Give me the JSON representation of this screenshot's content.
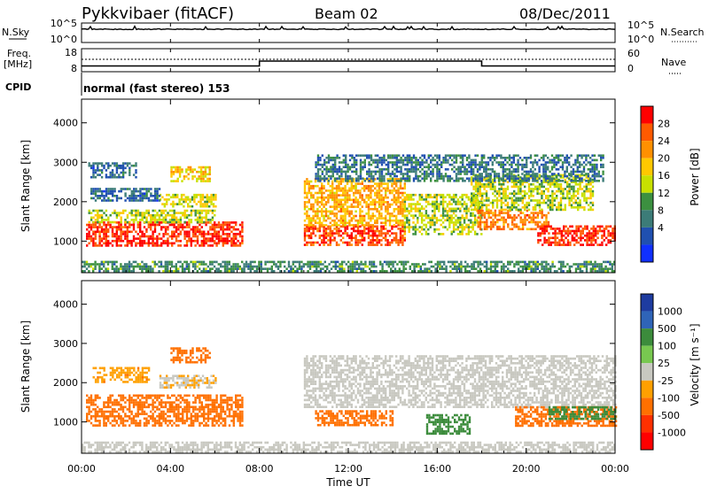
{
  "header": {
    "title": "Pykkvibaer (fitACF)",
    "beam": "Beam 02",
    "date": "08/Dec/2011"
  },
  "noise_panel": {
    "left_label": "N.Sky",
    "left_ticks": [
      "10^5",
      "10^0"
    ],
    "right_ticks": [
      "10^5",
      "10^0"
    ],
    "right_label": "N.Search"
  },
  "freq_panel": {
    "left_label_line1": "Freq.",
    "left_label_line2": "[MHz]",
    "left_ticks": [
      "18",
      "8"
    ],
    "right_ticks": [
      "60",
      "0"
    ],
    "right_label": "Nave"
  },
  "cpid": {
    "label": "CPID",
    "text": "normal (fast stereo) 153"
  },
  "power_panel": {
    "ylabel": "Slant Range [km]",
    "yticks": [
      "4000",
      "3000",
      "2000",
      "1000"
    ],
    "colorbar_label": "Power [dB]",
    "colorbar_ticks": [
      "28",
      "24",
      "20",
      "16",
      "12",
      "8",
      "4"
    ],
    "colorbar_colors": [
      "#ff0000",
      "#ff5a00",
      "#ff9000",
      "#ffc800",
      "#c8e000",
      "#3c9040",
      "#3c7c78",
      "#2050b0",
      "#1030ff"
    ]
  },
  "velocity_panel": {
    "ylabel": "Slant Range [km]",
    "yticks": [
      "4000",
      "3000",
      "2000",
      "1000"
    ],
    "colorbar_label": "Velocity [m s⁻¹]",
    "colorbar_ticks": [
      "1000",
      "500",
      "100",
      "25",
      "-25",
      "-100",
      "-500",
      "-1000"
    ],
    "colorbar_colors": [
      "#1e3ca0",
      "#2f64b8",
      "#3c8c3c",
      "#78c850",
      "#c8c8c0",
      "#ffa000",
      "#ff7000",
      "#ff3000",
      "#ff0000"
    ]
  },
  "xaxis": {
    "ticks": [
      "00:00",
      "04:00",
      "08:00",
      "12:00",
      "16:00",
      "20:00",
      "00:00"
    ],
    "label": "Time UT"
  },
  "chart_data": {
    "type": "heatmap",
    "title": "Pykkvibaer (fitACF)",
    "subtitle": "Beam 02",
    "date": "08/Dec/2011",
    "x_unit": "hours UT",
    "xlim": [
      0,
      24
    ],
    "y_unit": "km",
    "ylim": [
      200,
      4600
    ],
    "power": {
      "label": "Power [dB]",
      "range": [
        0,
        30
      ],
      "regions": [
        {
          "t0": 0.2,
          "t1": 7.2,
          "r0": 900,
          "r1": 1500,
          "value": 27
        },
        {
          "t0": 0.3,
          "t1": 6.0,
          "r0": 1500,
          "r1": 1800,
          "value": 15
        },
        {
          "t0": 4.0,
          "t1": 5.8,
          "r0": 2500,
          "r1": 2900,
          "value": 18
        },
        {
          "t0": 3.5,
          "t1": 6.0,
          "r0": 1900,
          "r1": 2200,
          "value": 16
        },
        {
          "t0": 0.4,
          "t1": 3.5,
          "r0": 2050,
          "r1": 2350,
          "value": 7
        },
        {
          "t0": 0.3,
          "t1": 2.5,
          "r0": 2600,
          "r1": 3000,
          "value": 7
        },
        {
          "t0": 10.0,
          "t1": 14.5,
          "r0": 900,
          "r1": 1400,
          "value": 26
        },
        {
          "t0": 10.0,
          "t1": 14.5,
          "r0": 1400,
          "r1": 2600,
          "value": 20
        },
        {
          "t0": 14.5,
          "t1": 18.0,
          "r0": 1200,
          "r1": 2200,
          "value": 15
        },
        {
          "t0": 17.8,
          "t1": 21.0,
          "r0": 1300,
          "r1": 1800,
          "value": 23
        },
        {
          "t0": 20.5,
          "t1": 24.0,
          "r0": 900,
          "r1": 1400,
          "value": 27
        },
        {
          "t0": 17.5,
          "t1": 23.0,
          "r0": 1800,
          "r1": 2700,
          "value": 15
        },
        {
          "t0": 10.5,
          "t1": 23.5,
          "r0": 2500,
          "r1": 3200,
          "value": 8
        },
        {
          "t0": 0.0,
          "t1": 24.0,
          "r0": 250,
          "r1": 500,
          "value": 10
        }
      ]
    },
    "velocity": {
      "label": "Velocity [m s⁻¹]",
      "range": [
        -1000,
        1000
      ],
      "regions": [
        {
          "t0": 0.2,
          "t1": 7.2,
          "r0": 900,
          "r1": 1700,
          "value": -250
        },
        {
          "t0": 4.0,
          "t1": 5.8,
          "r0": 2500,
          "r1": 2900,
          "value": -150
        },
        {
          "t0": 3.5,
          "t1": 6.0,
          "r0": 1850,
          "r1": 2200,
          "value": -20
        },
        {
          "t0": 0.5,
          "t1": 3.0,
          "r0": 2000,
          "r1": 2400,
          "value": -80
        },
        {
          "t0": 10.0,
          "t1": 24.0,
          "r0": 1400,
          "r1": 2700,
          "value": 0
        },
        {
          "t0": 10.5,
          "t1": 14.0,
          "r0": 900,
          "r1": 1300,
          "value": -150
        },
        {
          "t0": 15.5,
          "t1": 17.5,
          "r0": 700,
          "r1": 1200,
          "value": 200
        },
        {
          "t0": 19.5,
          "t1": 24.0,
          "r0": 900,
          "r1": 1400,
          "value": -200
        },
        {
          "t0": 21.0,
          "t1": 24.0,
          "r0": 1100,
          "r1": 1400,
          "value": 300
        },
        {
          "t0": 0.0,
          "t1": 24.0,
          "r0": 250,
          "r1": 500,
          "value": 10
        }
      ]
    },
    "frequency_MHz": [
      {
        "t0": 0,
        "t1": 8,
        "value": 10.5
      },
      {
        "t0": 8,
        "t1": 18,
        "value": 12.6
      },
      {
        "t0": 18,
        "t1": 24,
        "value": 10.5
      }
    ]
  }
}
